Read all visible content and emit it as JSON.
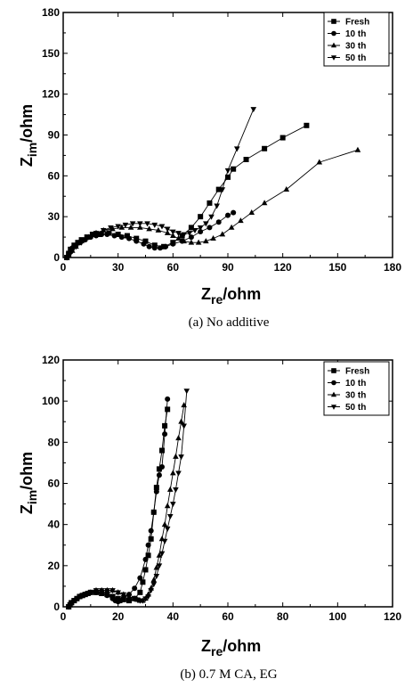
{
  "chart_data": [
    {
      "type": "line",
      "caption": "(a) No additive",
      "xlabel_main": "Z",
      "xlabel_sub": "re",
      "xlabel_unit": "/ohm",
      "ylabel_main": "Z",
      "ylabel_sub": "im",
      "ylabel_unit": "/ohm",
      "xlim": [
        0,
        180
      ],
      "ylim": [
        0,
        180
      ],
      "xticks": [
        "0",
        "30",
        "60",
        "90",
        "120",
        "150",
        "180"
      ],
      "yticks": [
        "0",
        "30",
        "60",
        "90",
        "120",
        "150",
        "180"
      ],
      "legend_position": "top-right",
      "series": [
        {
          "name": "Fresh",
          "marker": "square",
          "x": [
            2,
            3,
            4,
            6,
            8,
            10,
            13,
            16,
            20,
            25,
            30,
            35,
            40,
            45,
            50,
            55,
            60,
            65,
            70,
            75,
            80,
            85,
            90,
            93,
            100,
            110,
            120,
            133
          ],
          "y": [
            0,
            3,
            6,
            9,
            11,
            13,
            15,
            17,
            17,
            18,
            17,
            16,
            14,
            12,
            9,
            8,
            11,
            16,
            22,
            30,
            40,
            50,
            59,
            65,
            72,
            80,
            88,
            97
          ]
        },
        {
          "name": "10 th",
          "marker": "circle",
          "x": [
            2,
            3,
            4,
            5,
            7,
            9,
            12,
            15,
            18,
            21,
            24,
            28,
            32,
            36,
            40,
            44,
            47,
            50,
            53,
            56,
            60,
            65,
            70,
            75,
            80,
            85,
            90,
            93
          ],
          "y": [
            0,
            2,
            4,
            7,
            9,
            11,
            13,
            15,
            16,
            17,
            17,
            16,
            15,
            14,
            12,
            10,
            8,
            7,
            7,
            8,
            10,
            12,
            15,
            19,
            22,
            26,
            31,
            33
          ]
        },
        {
          "name": "30 th",
          "marker": "triangle-up",
          "x": [
            2,
            3,
            5,
            7,
            10,
            14,
            18,
            22,
            27,
            32,
            37,
            42,
            47,
            52,
            57,
            60,
            63,
            66,
            70,
            74,
            78,
            82,
            87,
            92,
            97,
            103,
            110,
            122,
            140,
            161
          ],
          "y": [
            0,
            2,
            5,
            8,
            12,
            15,
            18,
            20,
            21,
            22,
            22,
            22,
            21,
            20,
            18,
            16,
            14,
            12,
            11,
            11,
            12,
            14,
            17,
            22,
            27,
            33,
            40,
            50,
            70,
            79
          ]
        },
        {
          "name": "50 th",
          "marker": "triangle-down",
          "x": [
            2,
            3,
            5,
            7,
            10,
            14,
            18,
            22,
            26,
            30,
            34,
            38,
            42,
            46,
            50,
            54,
            57,
            60,
            63,
            66,
            69,
            72,
            75,
            78,
            81,
            84,
            87,
            90,
            95,
            104
          ],
          "y": [
            0,
            2,
            5,
            8,
            11,
            15,
            18,
            20,
            22,
            23,
            24,
            25,
            25,
            25,
            24,
            23,
            21,
            19,
            18,
            17,
            18,
            20,
            22,
            25,
            30,
            38,
            50,
            64,
            80,
            109
          ]
        }
      ]
    },
    {
      "type": "line",
      "caption": "(b) 0.7 M CA, EG",
      "xlabel_main": "Z",
      "xlabel_sub": "re",
      "xlabel_unit": "/ohm",
      "ylabel_main": "Z",
      "ylabel_sub": "im",
      "ylabel_unit": "/ohm",
      "xlim": [
        0,
        120
      ],
      "ylim": [
        0,
        120
      ],
      "xticks": [
        "0",
        "20",
        "40",
        "60",
        "80",
        "100",
        "120"
      ],
      "yticks": [
        "0",
        "20",
        "40",
        "60",
        "80",
        "100",
        "120"
      ],
      "legend_position": "top-right",
      "series": [
        {
          "name": "Fresh",
          "marker": "square",
          "x": [
            2,
            2.5,
            3,
            4,
            5,
            6,
            7,
            8,
            9,
            10,
            12,
            14,
            16,
            18,
            20,
            22,
            24,
            26,
            28,
            29,
            30,
            31,
            32,
            33,
            34,
            35,
            36,
            37,
            38
          ],
          "y": [
            0,
            1,
            2,
            3,
            4,
            5,
            5.5,
            6,
            6.5,
            7,
            7,
            6.5,
            6,
            5,
            4,
            3.5,
            3,
            4,
            7,
            12,
            18,
            25,
            33,
            46,
            58,
            67,
            76,
            88,
            96
          ]
        },
        {
          "name": "10 th",
          "marker": "circle",
          "x": [
            2,
            2.5,
            3,
            4,
            5,
            6,
            7,
            8,
            9,
            10,
            12,
            14,
            16,
            18,
            19,
            20,
            21,
            22,
            24,
            26,
            28,
            30,
            31,
            32,
            33,
            34,
            35,
            36,
            37,
            38
          ],
          "y": [
            0,
            1,
            2,
            3,
            4,
            5,
            5.5,
            6,
            6.5,
            7,
            7,
            6.5,
            5.5,
            4,
            3,
            2.5,
            3,
            4,
            6,
            9,
            14,
            23,
            30,
            37,
            46,
            56,
            64,
            68,
            84,
            101
          ]
        },
        {
          "name": "30 th",
          "marker": "triangle-up",
          "x": [
            2,
            3,
            4,
            6,
            8,
            10,
            12,
            14,
            16,
            18,
            20,
            22,
            24,
            26,
            27,
            28,
            29,
            30,
            31,
            32,
            33,
            34,
            35,
            36,
            37,
            38,
            39,
            40,
            41,
            42,
            43,
            44
          ],
          "y": [
            0,
            2,
            3,
            5,
            6,
            7,
            8,
            8,
            8,
            8,
            7,
            6,
            5,
            4,
            3.5,
            3,
            3,
            4,
            6,
            9,
            13,
            19,
            25,
            33,
            40,
            49,
            57,
            65,
            73,
            82,
            90,
            98
          ]
        },
        {
          "name": "50 th",
          "marker": "triangle-down",
          "x": [
            2,
            3,
            4,
            6,
            8,
            10,
            12,
            14,
            16,
            18,
            20,
            22,
            24,
            26,
            27,
            28,
            29,
            30,
            31,
            32,
            33,
            34,
            35,
            36,
            37,
            38,
            39,
            40,
            41,
            42,
            43,
            44,
            45
          ],
          "y": [
            0,
            2,
            3,
            5,
            6,
            7,
            8,
            8,
            8,
            8,
            7,
            6,
            5,
            4,
            3.5,
            3,
            3,
            4,
            5,
            8,
            11,
            15,
            20,
            26,
            32,
            38,
            44,
            50,
            57,
            65,
            73,
            88,
            105
          ]
        }
      ]
    }
  ]
}
